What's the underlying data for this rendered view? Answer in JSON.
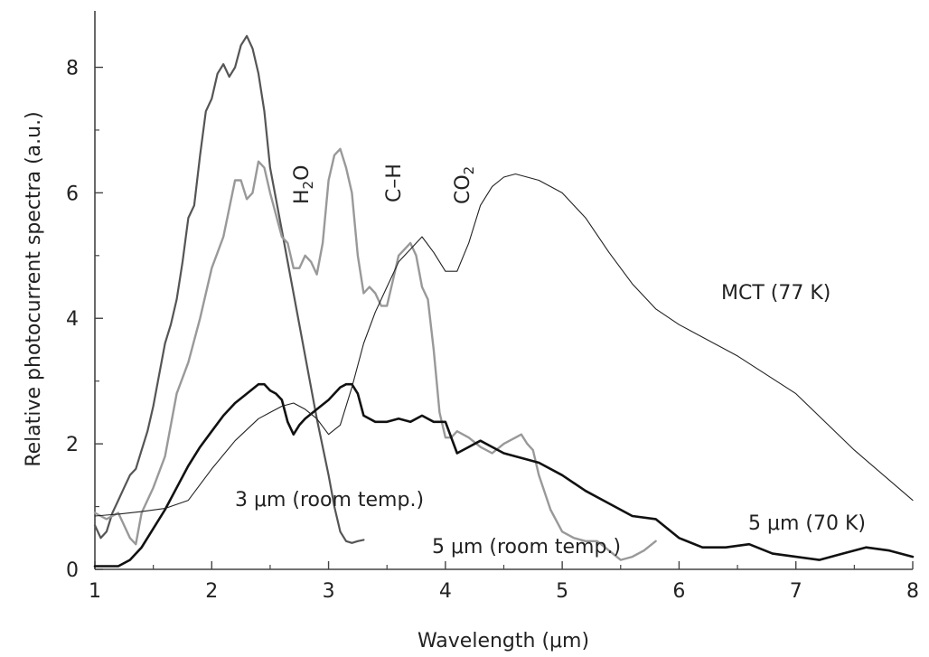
{
  "chart_data": {
    "type": "line",
    "title": "",
    "xlabel": "Wavelength (μm)",
    "ylabel": "Relative photocurrent spectra (a.u.)",
    "xlim": [
      1,
      8
    ],
    "ylim": [
      0,
      8.9
    ],
    "xticks": [
      1,
      2,
      3,
      4,
      5,
      6,
      7,
      8
    ],
    "yticks": [
      0,
      2,
      4,
      6,
      8
    ],
    "grid": false,
    "legend": "none",
    "series": [
      {
        "name": "3 μm (room temp.)",
        "color": "#555555",
        "stroke": 2.2,
        "x": [
          1.0,
          1.05,
          1.1,
          1.15,
          1.2,
          1.25,
          1.3,
          1.35,
          1.4,
          1.45,
          1.5,
          1.55,
          1.6,
          1.65,
          1.7,
          1.75,
          1.8,
          1.85,
          1.9,
          1.95,
          2.0,
          2.05,
          2.1,
          2.15,
          2.2,
          2.25,
          2.3,
          2.35,
          2.4,
          2.45,
          2.5,
          2.6,
          2.7,
          2.8,
          2.9,
          3.0,
          3.05,
          3.1,
          3.15,
          3.2,
          3.25,
          3.3
        ],
        "y": [
          0.7,
          0.5,
          0.6,
          0.9,
          1.1,
          1.3,
          1.5,
          1.6,
          1.9,
          2.2,
          2.6,
          3.1,
          3.6,
          3.9,
          4.3,
          4.9,
          5.6,
          5.8,
          6.6,
          7.3,
          7.5,
          7.9,
          8.05,
          7.85,
          8.0,
          8.35,
          8.5,
          8.3,
          7.9,
          7.3,
          6.4,
          5.4,
          4.4,
          3.4,
          2.4,
          1.5,
          1.0,
          0.6,
          0.45,
          0.42,
          0.45,
          0.47
        ]
      },
      {
        "name": "5 μm (room temp.)",
        "color": "#999999",
        "stroke": 2.4,
        "x": [
          1.0,
          1.1,
          1.2,
          1.3,
          1.35,
          1.4,
          1.5,
          1.6,
          1.7,
          1.8,
          1.9,
          2.0,
          2.1,
          2.2,
          2.25,
          2.3,
          2.35,
          2.4,
          2.45,
          2.5,
          2.6,
          2.65,
          2.7,
          2.75,
          2.8,
          2.85,
          2.9,
          2.95,
          3.0,
          3.05,
          3.1,
          3.15,
          3.2,
          3.25,
          3.3,
          3.35,
          3.4,
          3.45,
          3.5,
          3.55,
          3.6,
          3.65,
          3.7,
          3.75,
          3.8,
          3.85,
          3.9,
          3.95,
          4.0,
          4.05,
          4.1,
          4.2,
          4.3,
          4.4,
          4.5,
          4.6,
          4.65,
          4.7,
          4.75,
          4.8,
          4.9,
          5.0,
          5.1,
          5.2,
          5.3,
          5.5,
          5.6,
          5.7,
          5.8
        ],
        "y": [
          0.9,
          0.8,
          0.9,
          0.5,
          0.4,
          0.9,
          1.3,
          1.8,
          2.8,
          3.3,
          4.0,
          4.8,
          5.3,
          6.2,
          6.2,
          5.9,
          6.0,
          6.5,
          6.4,
          6.0,
          5.3,
          5.2,
          4.8,
          4.8,
          5.0,
          4.9,
          4.7,
          5.2,
          6.2,
          6.6,
          6.7,
          6.4,
          6.0,
          5.0,
          4.4,
          4.5,
          4.4,
          4.2,
          4.2,
          4.6,
          5.0,
          5.1,
          5.2,
          5.0,
          4.5,
          4.3,
          3.5,
          2.5,
          2.1,
          2.1,
          2.2,
          2.1,
          1.95,
          1.85,
          2.0,
          2.1,
          2.15,
          2.0,
          1.9,
          1.5,
          0.95,
          0.6,
          0.5,
          0.45,
          0.45,
          0.15,
          0.2,
          0.3,
          0.45
        ]
      },
      {
        "name": "5 μm (70 K)",
        "color": "#111111",
        "stroke": 2.6,
        "x": [
          1.0,
          1.2,
          1.3,
          1.4,
          1.5,
          1.6,
          1.7,
          1.8,
          1.9,
          2.0,
          2.1,
          2.2,
          2.3,
          2.4,
          2.45,
          2.5,
          2.55,
          2.6,
          2.65,
          2.7,
          2.75,
          2.8,
          2.9,
          3.0,
          3.1,
          3.15,
          3.2,
          3.25,
          3.3,
          3.4,
          3.5,
          3.6,
          3.7,
          3.8,
          3.9,
          4.0,
          4.1,
          4.2,
          4.3,
          4.4,
          4.5,
          4.6,
          4.7,
          4.8,
          5.0,
          5.2,
          5.4,
          5.6,
          5.8,
          6.0,
          6.2,
          6.4,
          6.6,
          6.8,
          7.0,
          7.2,
          7.4,
          7.6,
          7.8,
          8.0
        ],
        "y": [
          0.05,
          0.05,
          0.15,
          0.35,
          0.65,
          0.95,
          1.3,
          1.65,
          1.95,
          2.2,
          2.45,
          2.65,
          2.8,
          2.95,
          2.95,
          2.85,
          2.8,
          2.7,
          2.35,
          2.15,
          2.3,
          2.4,
          2.55,
          2.7,
          2.9,
          2.95,
          2.95,
          2.8,
          2.45,
          2.35,
          2.35,
          2.4,
          2.35,
          2.45,
          2.35,
          2.35,
          1.85,
          1.95,
          2.05,
          1.95,
          1.85,
          1.8,
          1.75,
          1.7,
          1.5,
          1.25,
          1.05,
          0.85,
          0.8,
          0.5,
          0.35,
          0.35,
          0.4,
          0.25,
          0.2,
          0.15,
          0.25,
          0.35,
          0.3,
          0.2
        ]
      },
      {
        "name": "MCT (77 K)",
        "color": "#222222",
        "stroke": 1.1,
        "x": [
          1.0,
          1.2,
          1.4,
          1.6,
          1.8,
          2.0,
          2.2,
          2.4,
          2.5,
          2.6,
          2.7,
          2.8,
          2.9,
          3.0,
          3.1,
          3.2,
          3.3,
          3.4,
          3.5,
          3.6,
          3.7,
          3.8,
          3.9,
          4.0,
          4.1,
          4.2,
          4.3,
          4.4,
          4.5,
          4.6,
          4.7,
          4.8,
          5.0,
          5.2,
          5.4,
          5.6,
          5.8,
          6.0,
          6.5,
          7.0,
          7.5,
          8.0
        ],
        "y": [
          0.85,
          0.88,
          0.92,
          0.97,
          1.1,
          1.6,
          2.05,
          2.4,
          2.5,
          2.6,
          2.65,
          2.55,
          2.4,
          2.15,
          2.3,
          2.9,
          3.6,
          4.1,
          4.5,
          4.9,
          5.1,
          5.3,
          5.05,
          4.75,
          4.75,
          5.2,
          5.8,
          6.1,
          6.25,
          6.3,
          6.25,
          6.2,
          6.0,
          5.6,
          5.05,
          4.55,
          4.15,
          3.9,
          3.4,
          2.8,
          1.9,
          1.1
        ]
      }
    ],
    "annotations": [
      {
        "text": "3 μm (room temp.)"
      },
      {
        "text": "5 μm (room temp.)"
      },
      {
        "text": "5 μm (70 K)"
      },
      {
        "text": "MCT (77 K)"
      },
      {
        "text": "H",
        "sub": "2",
        "tail": "O"
      },
      {
        "text": "C–H"
      },
      {
        "text": "CO",
        "sub": "2"
      }
    ]
  }
}
